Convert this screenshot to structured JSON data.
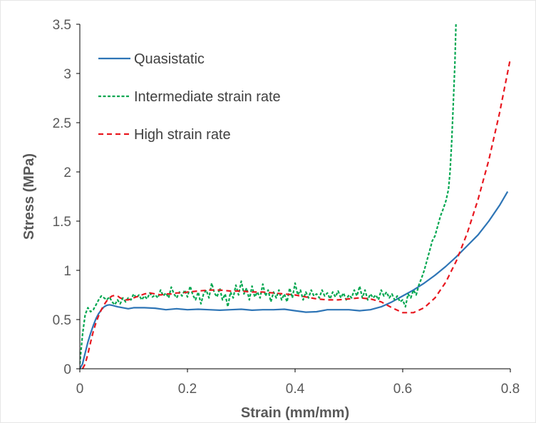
{
  "chart_data": {
    "type": "line",
    "xlabel": "Strain (mm/mm)",
    "ylabel": "Stress (MPa)",
    "xlim": [
      0,
      0.8
    ],
    "ylim": [
      0,
      3.5
    ],
    "xticks": [
      "0",
      "0.2",
      "0.4",
      "0.6",
      "0.8"
    ],
    "yticks": [
      "0",
      "0.5",
      "1",
      "1.5",
      "2",
      "2.5",
      "3",
      "3.5"
    ],
    "grid": false,
    "legend": "top-left",
    "series": [
      {
        "name": "Quasistatic",
        "color": "#2E75B6",
        "dash": "solid",
        "points": [
          [
            0,
            0
          ],
          [
            0.005,
            0.05
          ],
          [
            0.01,
            0.16
          ],
          [
            0.015,
            0.27
          ],
          [
            0.02,
            0.36
          ],
          [
            0.025,
            0.44
          ],
          [
            0.03,
            0.51
          ],
          [
            0.035,
            0.56
          ],
          [
            0.04,
            0.6
          ],
          [
            0.045,
            0.63
          ],
          [
            0.05,
            0.645
          ],
          [
            0.055,
            0.65
          ],
          [
            0.06,
            0.645
          ],
          [
            0.07,
            0.63
          ],
          [
            0.08,
            0.62
          ],
          [
            0.09,
            0.61
          ],
          [
            0.1,
            0.62
          ],
          [
            0.12,
            0.62
          ],
          [
            0.14,
            0.615
          ],
          [
            0.16,
            0.6
          ],
          [
            0.18,
            0.61
          ],
          [
            0.2,
            0.6
          ],
          [
            0.22,
            0.605
          ],
          [
            0.24,
            0.6
          ],
          [
            0.26,
            0.595
          ],
          [
            0.28,
            0.6
          ],
          [
            0.3,
            0.605
          ],
          [
            0.32,
            0.595
          ],
          [
            0.34,
            0.6
          ],
          [
            0.36,
            0.6
          ],
          [
            0.38,
            0.605
          ],
          [
            0.4,
            0.59
          ],
          [
            0.42,
            0.575
          ],
          [
            0.44,
            0.58
          ],
          [
            0.46,
            0.6
          ],
          [
            0.48,
            0.6
          ],
          [
            0.5,
            0.6
          ],
          [
            0.52,
            0.59
          ],
          [
            0.54,
            0.6
          ],
          [
            0.56,
            0.63
          ],
          [
            0.58,
            0.68
          ],
          [
            0.6,
            0.74
          ],
          [
            0.62,
            0.8
          ],
          [
            0.64,
            0.87
          ],
          [
            0.66,
            0.95
          ],
          [
            0.68,
            1.04
          ],
          [
            0.7,
            1.14
          ],
          [
            0.72,
            1.25
          ],
          [
            0.74,
            1.36
          ],
          [
            0.76,
            1.5
          ],
          [
            0.78,
            1.66
          ],
          [
            0.795,
            1.8
          ]
        ]
      },
      {
        "name": "Intermediate strain rate",
        "color": "#00A64F",
        "dash": "dash-fine",
        "points": [
          [
            0,
            0.05
          ],
          [
            0.005,
            0.35
          ],
          [
            0.01,
            0.55
          ],
          [
            0.015,
            0.62
          ],
          [
            0.02,
            0.58
          ],
          [
            0.025,
            0.6
          ],
          [
            0.03,
            0.65
          ],
          [
            0.035,
            0.7
          ],
          [
            0.04,
            0.74
          ],
          [
            0.045,
            0.72
          ],
          [
            0.05,
            0.7
          ],
          [
            0.055,
            0.73
          ],
          [
            0.06,
            0.68
          ],
          [
            0.065,
            0.65
          ],
          [
            0.07,
            0.7
          ],
          [
            0.075,
            0.66
          ],
          [
            0.08,
            0.72
          ],
          [
            0.085,
            0.68
          ],
          [
            0.09,
            0.72
          ],
          [
            0.095,
            0.7
          ],
          [
            0.1,
            0.76
          ],
          [
            0.105,
            0.72
          ],
          [
            0.11,
            0.75
          ],
          [
            0.115,
            0.7
          ],
          [
            0.12,
            0.74
          ],
          [
            0.125,
            0.71
          ],
          [
            0.13,
            0.77
          ],
          [
            0.135,
            0.73
          ],
          [
            0.14,
            0.75
          ],
          [
            0.145,
            0.72
          ],
          [
            0.15,
            0.8
          ],
          [
            0.155,
            0.74
          ],
          [
            0.16,
            0.77
          ],
          [
            0.165,
            0.72
          ],
          [
            0.17,
            0.83
          ],
          [
            0.175,
            0.76
          ],
          [
            0.18,
            0.72
          ],
          [
            0.185,
            0.78
          ],
          [
            0.19,
            0.74
          ],
          [
            0.195,
            0.8
          ],
          [
            0.2,
            0.73
          ],
          [
            0.205,
            0.84
          ],
          [
            0.21,
            0.75
          ],
          [
            0.215,
            0.7
          ],
          [
            0.22,
            0.78
          ],
          [
            0.225,
            0.66
          ],
          [
            0.23,
            0.76
          ],
          [
            0.235,
            0.8
          ],
          [
            0.24,
            0.72
          ],
          [
            0.245,
            0.87
          ],
          [
            0.25,
            0.77
          ],
          [
            0.255,
            0.73
          ],
          [
            0.26,
            0.82
          ],
          [
            0.265,
            0.7
          ],
          [
            0.27,
            0.76
          ],
          [
            0.275,
            0.63
          ],
          [
            0.28,
            0.78
          ],
          [
            0.285,
            0.72
          ],
          [
            0.29,
            0.85
          ],
          [
            0.295,
            0.75
          ],
          [
            0.3,
            0.89
          ],
          [
            0.305,
            0.76
          ],
          [
            0.31,
            0.82
          ],
          [
            0.315,
            0.7
          ],
          [
            0.32,
            0.84
          ],
          [
            0.325,
            0.73
          ],
          [
            0.33,
            0.78
          ],
          [
            0.335,
            0.72
          ],
          [
            0.34,
            0.86
          ],
          [
            0.345,
            0.74
          ],
          [
            0.35,
            0.8
          ],
          [
            0.355,
            0.68
          ],
          [
            0.36,
            0.78
          ],
          [
            0.365,
            0.72
          ],
          [
            0.37,
            0.8
          ],
          [
            0.375,
            0.7
          ],
          [
            0.38,
            0.76
          ],
          [
            0.385,
            0.68
          ],
          [
            0.39,
            0.82
          ],
          [
            0.395,
            0.72
          ],
          [
            0.4,
            0.87
          ],
          [
            0.405,
            0.75
          ],
          [
            0.41,
            0.8
          ],
          [
            0.415,
            0.7
          ],
          [
            0.42,
            0.78
          ],
          [
            0.425,
            0.72
          ],
          [
            0.43,
            0.8
          ],
          [
            0.435,
            0.74
          ],
          [
            0.44,
            0.76
          ],
          [
            0.445,
            0.72
          ],
          [
            0.45,
            0.8
          ],
          [
            0.455,
            0.74
          ],
          [
            0.46,
            0.77
          ],
          [
            0.465,
            0.71
          ],
          [
            0.47,
            0.78
          ],
          [
            0.475,
            0.73
          ],
          [
            0.48,
            0.79
          ],
          [
            0.485,
            0.72
          ],
          [
            0.49,
            0.77
          ],
          [
            0.495,
            0.7
          ],
          [
            0.5,
            0.75
          ],
          [
            0.505,
            0.72
          ],
          [
            0.51,
            0.8
          ],
          [
            0.515,
            0.74
          ],
          [
            0.52,
            0.84
          ],
          [
            0.525,
            0.72
          ],
          [
            0.53,
            0.8
          ],
          [
            0.535,
            0.7
          ],
          [
            0.54,
            0.76
          ],
          [
            0.545,
            0.72
          ],
          [
            0.55,
            0.75
          ],
          [
            0.555,
            0.7
          ],
          [
            0.56,
            0.8
          ],
          [
            0.565,
            0.74
          ],
          [
            0.57,
            0.78
          ],
          [
            0.575,
            0.72
          ],
          [
            0.58,
            0.76
          ],
          [
            0.585,
            0.7
          ],
          [
            0.59,
            0.74
          ],
          [
            0.595,
            0.68
          ],
          [
            0.6,
            0.7
          ],
          [
            0.605,
            0.63
          ],
          [
            0.61,
            0.76
          ],
          [
            0.615,
            0.72
          ],
          [
            0.62,
            0.8
          ],
          [
            0.625,
            0.75
          ],
          [
            0.63,
            0.85
          ],
          [
            0.635,
            0.92
          ],
          [
            0.64,
            1.0
          ],
          [
            0.645,
            1.1
          ],
          [
            0.65,
            1.2
          ],
          [
            0.655,
            1.3
          ],
          [
            0.66,
            1.35
          ],
          [
            0.665,
            1.45
          ],
          [
            0.67,
            1.55
          ],
          [
            0.675,
            1.62
          ],
          [
            0.68,
            1.7
          ],
          [
            0.685,
            1.82
          ],
          [
            0.688,
            2.0
          ],
          [
            0.691,
            2.3
          ],
          [
            0.694,
            2.7
          ],
          [
            0.697,
            3.1
          ],
          [
            0.699,
            3.5
          ]
        ]
      },
      {
        "name": "High strain rate",
        "color": "#E8171F",
        "dash": "dash",
        "points": [
          [
            0.005,
            0
          ],
          [
            0.01,
            0.05
          ],
          [
            0.015,
            0.15
          ],
          [
            0.02,
            0.27
          ],
          [
            0.025,
            0.38
          ],
          [
            0.03,
            0.47
          ],
          [
            0.035,
            0.54
          ],
          [
            0.04,
            0.6
          ],
          [
            0.045,
            0.65
          ],
          [
            0.05,
            0.69
          ],
          [
            0.055,
            0.72
          ],
          [
            0.06,
            0.74
          ],
          [
            0.065,
            0.745
          ],
          [
            0.07,
            0.74
          ],
          [
            0.075,
            0.72
          ],
          [
            0.08,
            0.71
          ],
          [
            0.085,
            0.7
          ],
          [
            0.09,
            0.7
          ],
          [
            0.1,
            0.72
          ],
          [
            0.11,
            0.74
          ],
          [
            0.12,
            0.76
          ],
          [
            0.13,
            0.77
          ],
          [
            0.14,
            0.76
          ],
          [
            0.15,
            0.75
          ],
          [
            0.16,
            0.76
          ],
          [
            0.17,
            0.76
          ],
          [
            0.18,
            0.77
          ],
          [
            0.19,
            0.77
          ],
          [
            0.2,
            0.78
          ],
          [
            0.22,
            0.79
          ],
          [
            0.24,
            0.8
          ],
          [
            0.26,
            0.8
          ],
          [
            0.28,
            0.79
          ],
          [
            0.3,
            0.79
          ],
          [
            0.32,
            0.78
          ],
          [
            0.34,
            0.78
          ],
          [
            0.36,
            0.77
          ],
          [
            0.38,
            0.76
          ],
          [
            0.4,
            0.75
          ],
          [
            0.42,
            0.73
          ],
          [
            0.44,
            0.71
          ],
          [
            0.46,
            0.7
          ],
          [
            0.48,
            0.7
          ],
          [
            0.5,
            0.71
          ],
          [
            0.52,
            0.72
          ],
          [
            0.54,
            0.71
          ],
          [
            0.56,
            0.68
          ],
          [
            0.58,
            0.62
          ],
          [
            0.6,
            0.57
          ],
          [
            0.62,
            0.57
          ],
          [
            0.64,
            0.62
          ],
          [
            0.66,
            0.72
          ],
          [
            0.68,
            0.88
          ],
          [
            0.7,
            1.1
          ],
          [
            0.72,
            1.38
          ],
          [
            0.74,
            1.72
          ],
          [
            0.76,
            2.12
          ],
          [
            0.78,
            2.6
          ],
          [
            0.8,
            3.15
          ]
        ]
      }
    ]
  }
}
